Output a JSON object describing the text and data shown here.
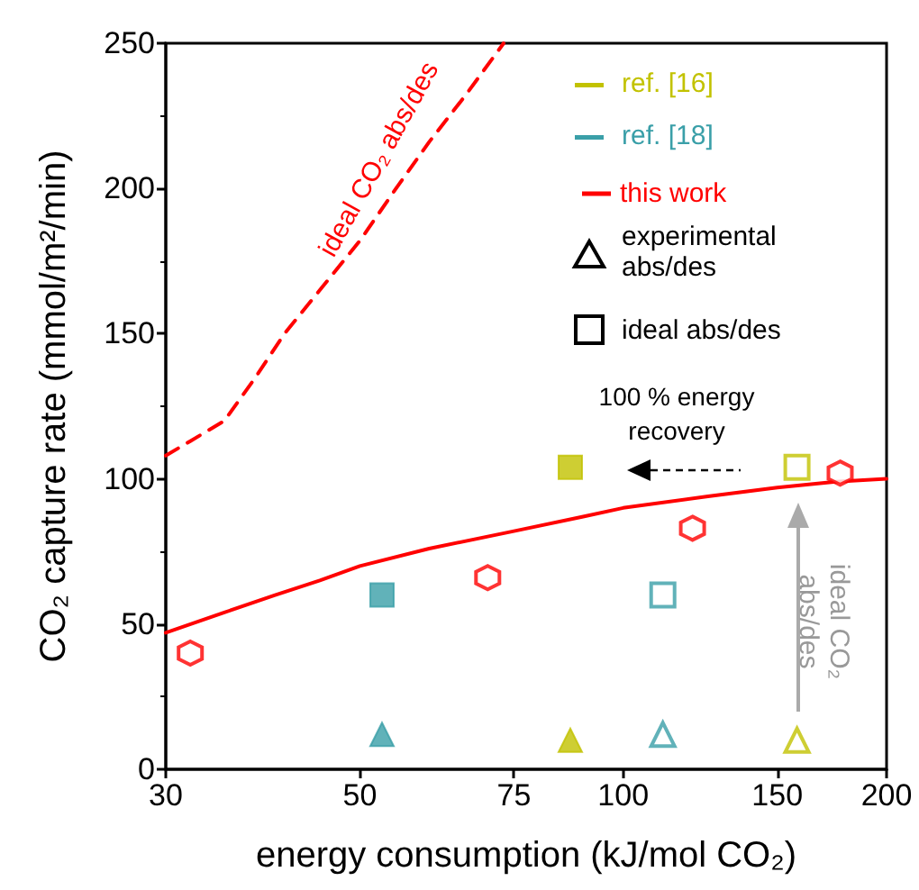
{
  "chart_data": {
    "type": "scatter",
    "xlabel": "energy consumption (kJ/mol CO₂)",
    "ylabel": "CO₂ capture rate (mmol/m²/min)",
    "log": "x",
    "xlim": [
      30,
      200
    ],
    "xticks": [
      30,
      50,
      75,
      100,
      150,
      200
    ],
    "ylim": [
      0,
      250
    ],
    "yticks": [
      0,
      50,
      100,
      150,
      200,
      250
    ],
    "grid": false,
    "legend": "top right",
    "series": [
      {
        "color": "#c2c200",
        "marker": "square",
        "x": [
          87
        ],
        "values": [
          104
        ]
      },
      {
        "color": "#c2c200",
        "marker": "triangle",
        "x": [
          87
        ],
        "values": [
          10
        ]
      },
      {
        "color": "#3a9fa8",
        "marker": "square",
        "x": [
          53
        ],
        "values": [
          60
        ]
      },
      {
        "color": "#3a9fa8",
        "marker": "triangle",
        "x": [
          53
        ],
        "values": [
          12
        ]
      },
      {
        "name": "this work",
        "type": "line",
        "color": "#ff0000",
        "line_style": "solid",
        "x": [
          30,
          35,
          40,
          45,
          50,
          60,
          75,
          90,
          100,
          125,
          150,
          175,
          200
        ],
        "values": [
          47,
          54,
          60,
          65,
          70,
          76,
          82,
          87,
          90,
          94,
          97,
          99,
          100
        ]
      },
      {
        "marker": "triangle",
        "colors": [
          "#3a9fa8",
          "#c2c200"
        ],
        "x": [
          111,
          158
        ],
        "values": [
          12,
          10
        ]
      },
      {
        "marker": "square",
        "colors": [
          "#3a9fa8",
          "#c2c200"
        ],
        "x": [
          111,
          158
        ],
        "values": [
          60,
          104
        ]
      },
      {
        "colors": [
          "#ff0000",
          "#ff0000",
          "#ff0000",
          "#ff0000"
        ],
        "x": [
          32,
          70,
          120,
          177
        ],
        "values": [
          40,
          66,
          83,
          102
        ]
      },
      {
        "type": "line",
        "color": "#ff0000",
        "line_style": "dashed",
        "x": [
          30,
          32,
          35,
          38,
          41,
          45,
          50,
          55,
          60,
          66,
          73
        ],
        "values": [
          108,
          113,
          120,
          135,
          150,
          165,
          182,
          200,
          216,
          232,
          250
        ]
      }
    ],
    "annotations": [
      "ref. [16]",
      "ref. [18]",
      "experimental abs/des",
      "ideal abs/des",
      "ideal CO₂ abs/des",
      "100 % energy recovery",
      "ideal CO₂ abs/des"
    ]
  }
}
